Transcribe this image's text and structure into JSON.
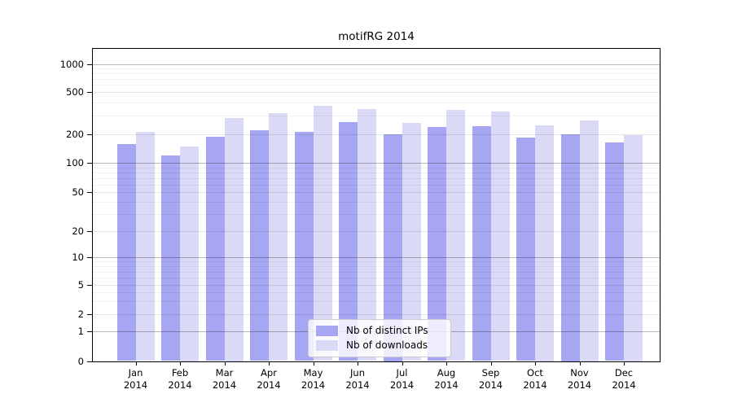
{
  "figure": {
    "title": "motifRG 2014"
  },
  "chart_data": {
    "type": "bar",
    "title": "motifRG 2014",
    "categories": [
      "Jan",
      "Feb",
      "Mar",
      "Apr",
      "May",
      "Jun",
      "Jul",
      "Aug",
      "Sep",
      "Oct",
      "Nov",
      "Dec"
    ],
    "x_year": "2014",
    "series": [
      {
        "name": "Nb of distinct IPs",
        "color": "#a6a6f2",
        "values": [
          158,
          120,
          188,
          220,
          210,
          260,
          200,
          235,
          240,
          185,
          200,
          165
        ]
      },
      {
        "name": "Nb of downloads",
        "color": "#dadaf6",
        "values": [
          210,
          150,
          287,
          318,
          372,
          345,
          257,
          340,
          325,
          245,
          270,
          196
        ]
      }
    ],
    "yscale": "log",
    "ylim": [
      0,
      1000
    ],
    "ytick_labels": [
      "0",
      "1",
      "2",
      "5",
      "10",
      "20",
      "50",
      "100",
      "200",
      "500",
      "1000"
    ],
    "yticks": [
      0,
      1,
      2,
      5,
      10,
      20,
      50,
      100,
      200,
      500,
      1000
    ],
    "grid": true,
    "legend_position": "lower center (inside plot)"
  },
  "colors": {
    "distinct_ips": "#a6a6f2",
    "downloads": "#dadaf6",
    "spine": "#000000",
    "legend_border": "#cccccc"
  }
}
